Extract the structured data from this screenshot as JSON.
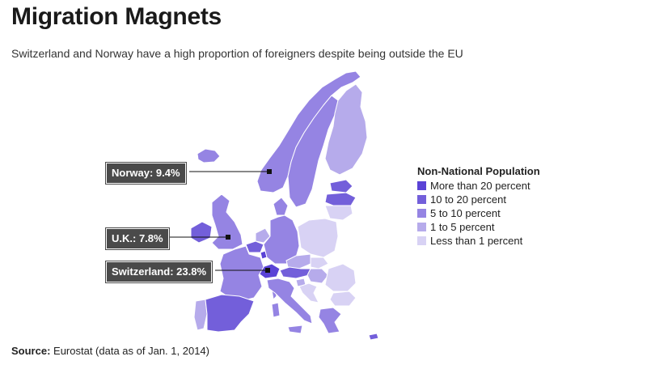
{
  "title": "Migration Magnets",
  "subtitle": "Switzerland and Norway have a high proportion of foreigners despite being outside the EU",
  "callouts": {
    "norway": "Norway: 9.4%",
    "uk": "U.K.: 7.8%",
    "switzerland": "Switzerland: 23.8%"
  },
  "legend": {
    "title": "Non-National Population",
    "items": [
      {
        "label": "More than 20 percent",
        "color": "#5a43d6"
      },
      {
        "label": "10 to 20 percent",
        "color": "#735fda"
      },
      {
        "label": "5 to 10 percent",
        "color": "#9584e3"
      },
      {
        "label": "1 to 5 percent",
        "color": "#b6abeb"
      },
      {
        "label": "Less than 1 percent",
        "color": "#d8d2f4"
      }
    ]
  },
  "source": {
    "label": "Source:",
    "text": "Eurostat (data as of Jan. 1, 2014)"
  }
}
